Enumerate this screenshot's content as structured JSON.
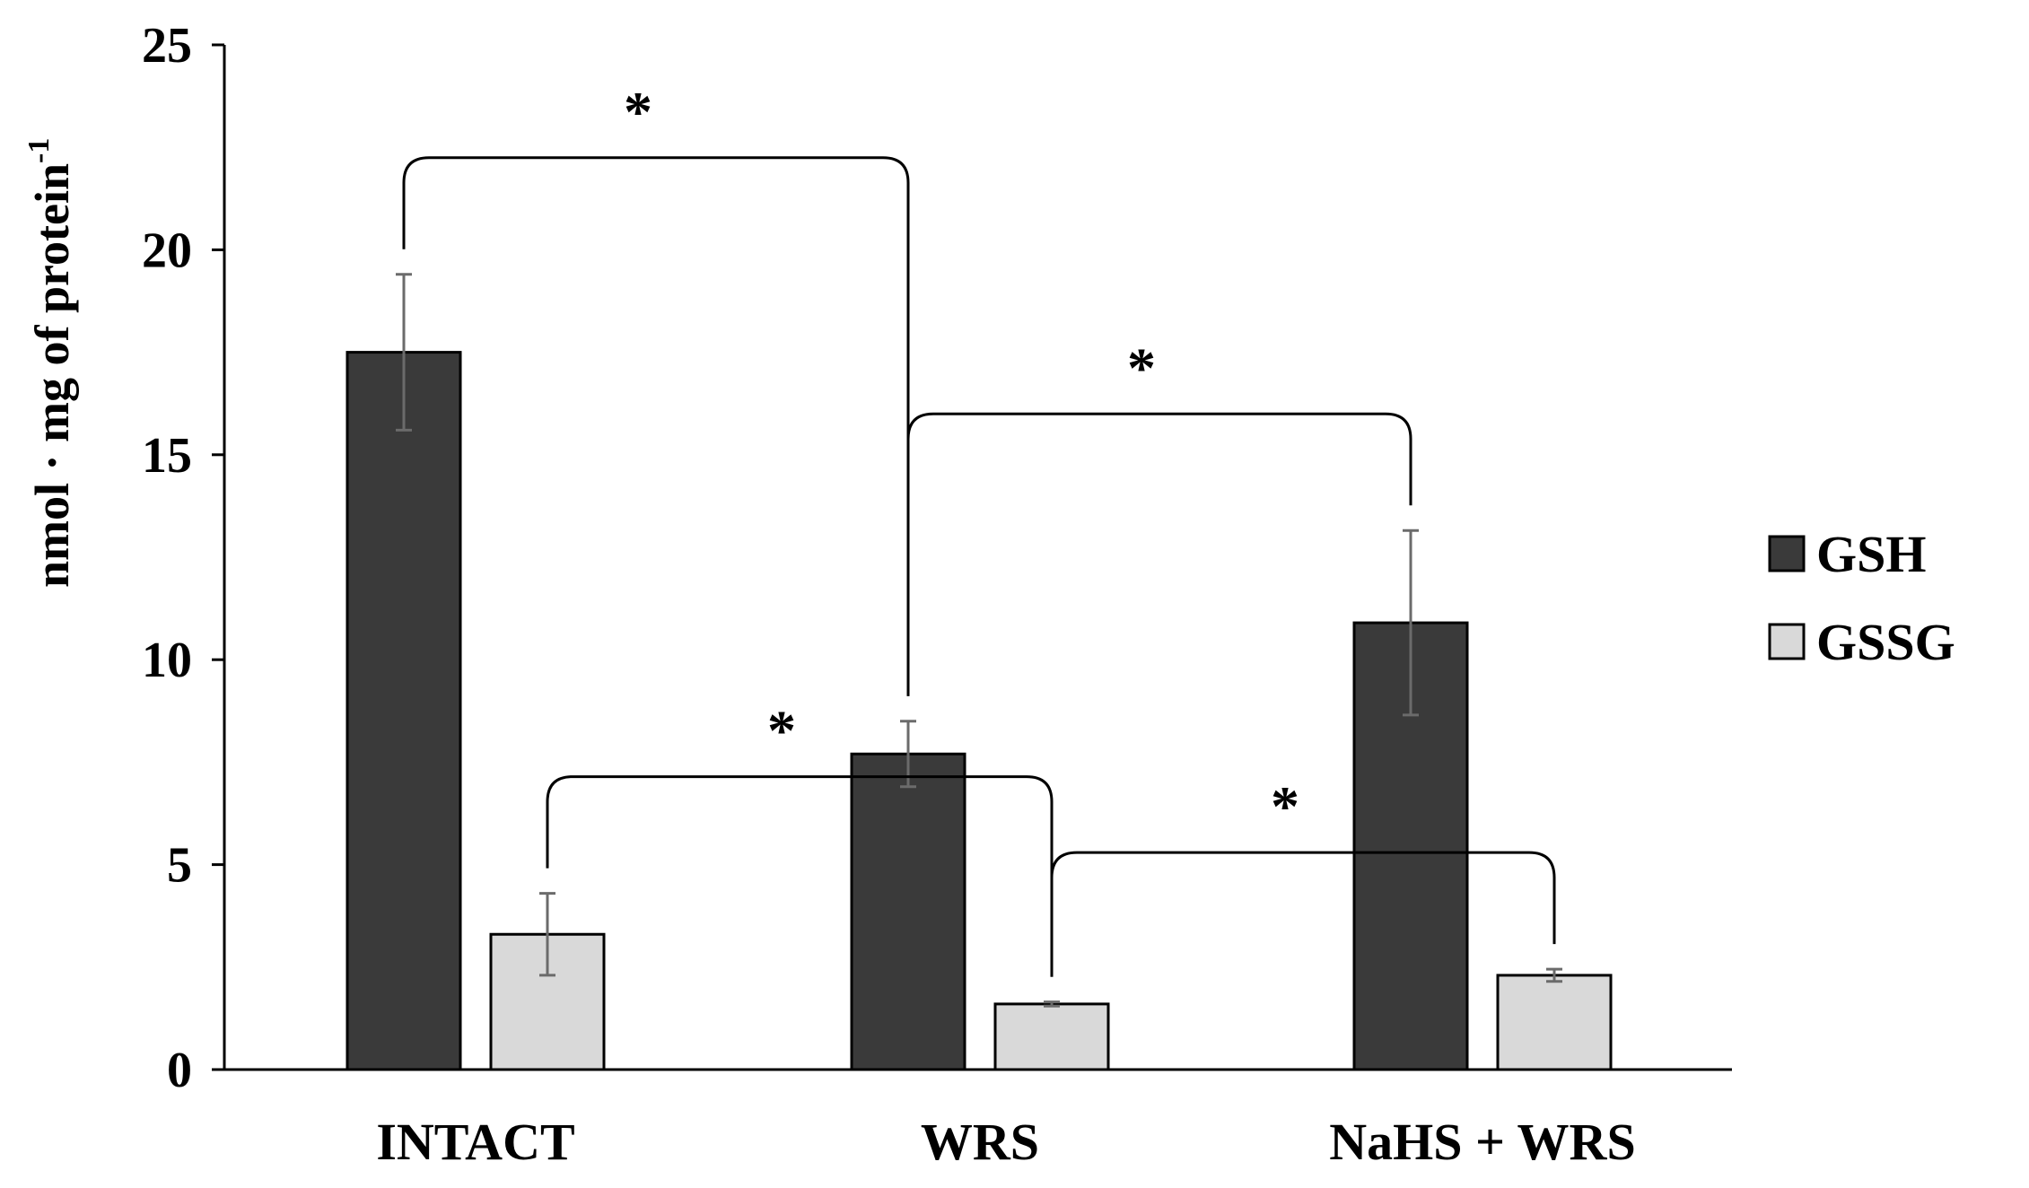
{
  "chart_data": {
    "type": "bar",
    "title": "",
    "xlabel": "",
    "ylabel": "nmol · mg of protein",
    "ylabel_superscript": "-1",
    "ylim": [
      0,
      25
    ],
    "yticks": [
      0,
      5,
      10,
      15,
      20,
      25
    ],
    "categories": [
      "INTACT",
      "WRS",
      "NaHS + WRS"
    ],
    "series": [
      {
        "name": "GSH",
        "color": "#3a3a3a",
        "values": [
          17.5,
          7.7,
          10.9
        ],
        "errors": [
          1.9,
          0.8,
          2.25
        ]
      },
      {
        "name": "GSSG",
        "color": "#d9d9d9",
        "values": [
          3.3,
          1.6,
          2.3
        ],
        "errors": [
          1.0,
          0.05,
          0.15
        ]
      }
    ],
    "legend_position": "right",
    "grid": false,
    "significance": [
      {
        "label": "*",
        "from": {
          "category": 0,
          "series": 0
        },
        "to": {
          "category": 1,
          "series": 0
        }
      },
      {
        "label": "*",
        "from": {
          "category": 1,
          "series": 0
        },
        "to": {
          "category": 2,
          "series": 0
        }
      },
      {
        "label": "*",
        "from": {
          "category": 0,
          "series": 1
        },
        "to": {
          "category": 1,
          "series": 1
        }
      },
      {
        "label": "*",
        "from": {
          "category": 1,
          "series": 1
        },
        "to": {
          "category": 2,
          "series": 1
        }
      }
    ]
  }
}
